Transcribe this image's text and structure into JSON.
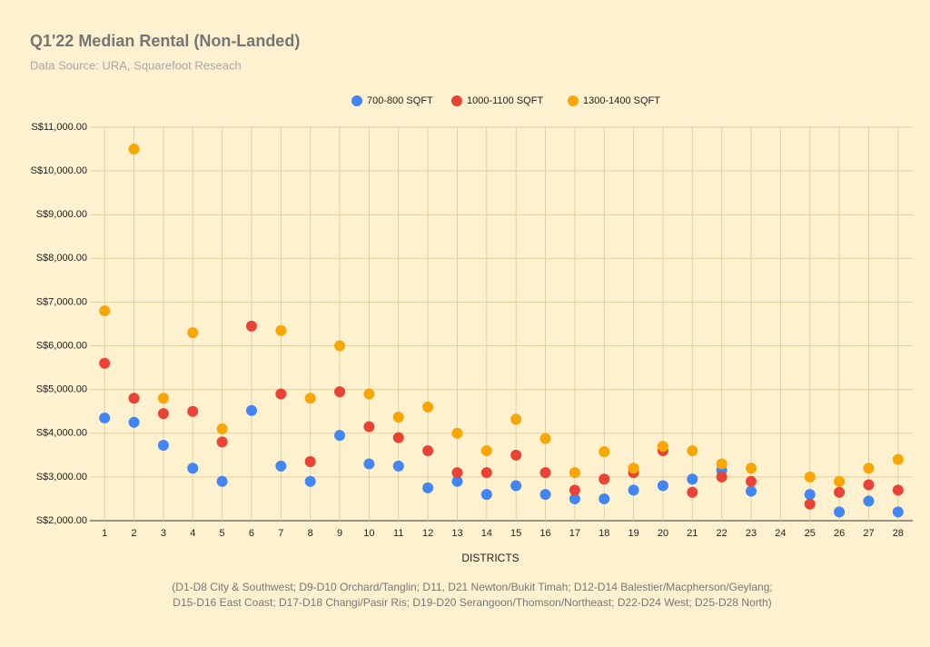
{
  "chart_data": {
    "type": "scatter",
    "title": "Q1'22 Median Rental (Non-Landed)",
    "subtitle": "Data Source: URA, Squarefoot Reseach",
    "x_label": "DISTRICTS",
    "notes": [
      "(D1-D8 City & Southwest;   D9-D10 Orchard/Tanglin;   D11, D21 Newton/Bukit Timah;   D12-D14 Balestier/Macpherson/Geylang;",
      "D15-D16 East Coast;   D17-D18 Changi/Pasir Ris;   D19-D20 Serangoon/Thomson/Northeast;   D22-D24 West;   D25-D28 North)"
    ],
    "x": [
      1,
      2,
      3,
      4,
      5,
      6,
      7,
      8,
      9,
      10,
      11,
      12,
      13,
      14,
      15,
      16,
      17,
      18,
      19,
      20,
      21,
      22,
      23,
      24,
      25,
      26,
      27,
      28
    ],
    "xlim": [
      0.5,
      28.5
    ],
    "xticks": [
      1,
      2,
      3,
      4,
      5,
      6,
      7,
      8,
      9,
      10,
      11,
      12,
      13,
      14,
      15,
      16,
      17,
      18,
      19,
      20,
      21,
      22,
      23,
      24,
      25,
      26,
      27,
      28
    ],
    "ylim": [
      2000,
      11000
    ],
    "yticks": [
      {
        "value": 2000,
        "label": "S$2,000.00"
      },
      {
        "value": 3000,
        "label": "S$3,000.00"
      },
      {
        "value": 4000,
        "label": "S$4,000.00"
      },
      {
        "value": 5000,
        "label": "S$5,000.00"
      },
      {
        "value": 6000,
        "label": "S$6,000.00"
      },
      {
        "value": 7000,
        "label": "S$7,000.00"
      },
      {
        "value": 8000,
        "label": "S$8,000.00"
      },
      {
        "value": 9000,
        "label": "S$9,000.00"
      },
      {
        "value": 10000,
        "label": "S$10,000.00"
      },
      {
        "value": 11000,
        "label": "S$11,000.00"
      }
    ],
    "grid": true,
    "legend_position": "top",
    "series": [
      {
        "name": "700-800 SQFT",
        "color": "#4285f4",
        "values": [
          4350,
          4250,
          3725,
          3200,
          2900,
          4520,
          3250,
          2900,
          3950,
          3300,
          3250,
          2750,
          2900,
          2600,
          2800,
          2600,
          2500,
          2500,
          2700,
          2800,
          2950,
          3150,
          2675,
          null,
          2600,
          2200,
          2450,
          2200
        ]
      },
      {
        "name": "1000-1100 SQFT",
        "color": "#ea4335",
        "values": [
          5600,
          4800,
          4450,
          4500,
          3800,
          6450,
          4900,
          3350,
          4950,
          4150,
          3900,
          3600,
          3100,
          3100,
          3500,
          3100,
          2700,
          2950,
          3100,
          3600,
          2650,
          3000,
          2900,
          null,
          2380,
          2650,
          2820,
          2700
        ]
      },
      {
        "name": "1300-1400 SQFT",
        "color": "#f9a602",
        "values": [
          6800,
          10500,
          4800,
          6300,
          4100,
          null,
          6350,
          4800,
          6000,
          4900,
          4370,
          4600,
          4000,
          3600,
          4320,
          3880,
          3100,
          3580,
          3200,
          3700,
          3600,
          3300,
          3200,
          null,
          3000,
          2900,
          3200,
          3400
        ]
      }
    ]
  }
}
